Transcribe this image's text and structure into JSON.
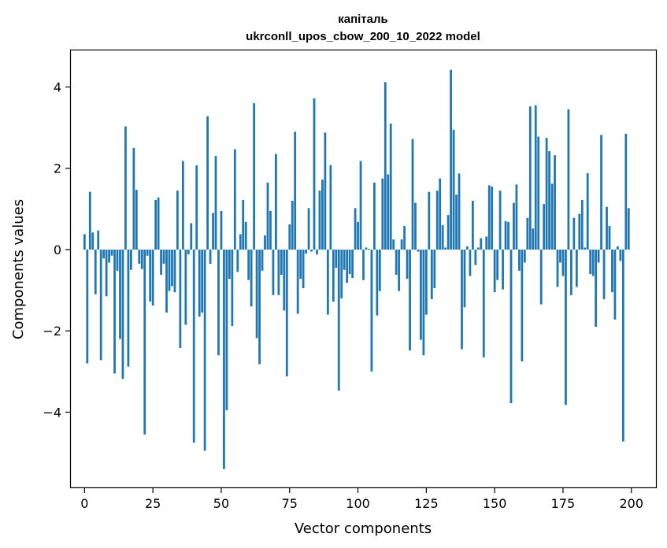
{
  "chart_data": {
    "type": "bar",
    "title": "капіталь",
    "subtitle": "ukrconll_upos_cbow_200_10_2022 model",
    "xlabel": "Vector components",
    "ylabel": "Components values",
    "xlim": [
      -5,
      209
    ],
    "ylim": [
      -5.85,
      4.9
    ],
    "xticks": [
      0,
      25,
      50,
      75,
      100,
      125,
      150,
      175,
      200
    ],
    "yticks": [
      -4,
      -2,
      0,
      2,
      4
    ],
    "ytick_labels": [
      "−4",
      "−2",
      "0",
      "2",
      "4"
    ],
    "grid": false,
    "bar_color": "#1f77b4",
    "values": [
      0.38,
      -2.8,
      1.42,
      0.42,
      -1.1,
      0.47,
      -2.72,
      -0.22,
      -1.15,
      -0.32,
      -0.15,
      -3.05,
      -0.52,
      -2.2,
      -3.18,
      3.03,
      -2.88,
      -0.5,
      2.5,
      1.47,
      -0.35,
      -0.48,
      -4.55,
      -0.15,
      -1.28,
      -1.38,
      1.22,
      1.28,
      -0.62,
      -0.35,
      -1.55,
      -1.02,
      -0.9,
      -1.05,
      1.45,
      -2.42,
      2.18,
      -1.85,
      -0.12,
      0.65,
      -4.75,
      2.07,
      -1.65,
      -1.55,
      -4.95,
      3.28,
      -0.35,
      0.9,
      2.3,
      -2.6,
      0.95,
      -5.4,
      -3.95,
      -0.72,
      -1.88,
      2.47,
      -0.55,
      0.38,
      1.22,
      0.68,
      -0.75,
      -1.4,
      3.6,
      -2.18,
      -2.82,
      -0.52,
      0.35,
      1.65,
      0.95,
      -1.12,
      2.35,
      -1.12,
      -0.62,
      -1.5,
      -3.12,
      0.62,
      1.2,
      2.9,
      -1.58,
      -0.72,
      -0.95,
      -0.1,
      1.02,
      -0.05,
      3.72,
      -0.12,
      1.45,
      1.72,
      2.88,
      -1.6,
      2.08,
      -1.28,
      -0.45,
      -3.47,
      -1.2,
      -0.5,
      -0.82,
      -0.6,
      -0.7,
      1.02,
      0.68,
      2.18,
      -0.75,
      0.05,
      0.02,
      -3.0,
      1.65,
      -1.62,
      -1.02,
      1.75,
      4.12,
      1.85,
      3.1,
      0.25,
      -0.62,
      -1.02,
      0.25,
      0.58,
      -0.72,
      -2.48,
      2.72,
      1.15,
      -0.05,
      -2.22,
      -2.6,
      -1.6,
      1.42,
      -1.22,
      -0.95,
      1.45,
      1.75,
      0.6,
      0.05,
      0.85,
      4.42,
      2.95,
      1.35,
      1.87,
      -2.45,
      -1.42,
      0.08,
      -0.65,
      1.2,
      -0.38,
      0.05,
      0.28,
      -2.65,
      0.32,
      1.58,
      1.55,
      -1.05,
      -0.75,
      1.45,
      -0.98,
      0.7,
      0.68,
      -3.78,
      1.15,
      1.6,
      -0.52,
      -2.75,
      -0.32,
      0.78,
      3.52,
      0.52,
      3.55,
      2.78,
      -1.35,
      1.12,
      2.75,
      2.42,
      1.62,
      2.32,
      -0.92,
      -0.32,
      -0.65,
      -3.82,
      3.45,
      -1.12,
      0.78,
      -0.92,
      0.88,
      1.22,
      0.05,
      1.88,
      -0.6,
      -0.65,
      -1.9,
      -0.32,
      2.82,
      -1.22,
      1.05,
      0.58,
      -1.05,
      -1.72,
      0.08,
      -0.28,
      -4.72,
      2.85,
      1.02
    ]
  }
}
